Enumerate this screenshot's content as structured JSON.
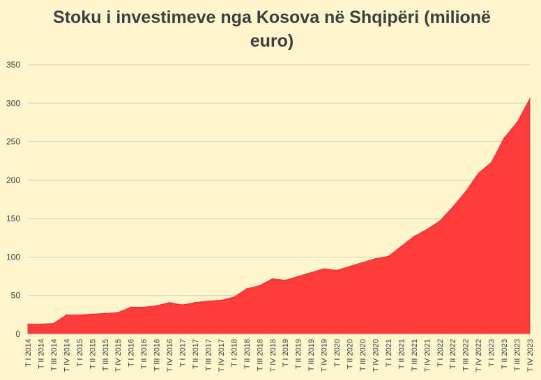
{
  "chart_data": {
    "type": "area",
    "title": "Stoku i investimeve nga Kosova në Shqipëri (milionë euro)",
    "xlabel": "",
    "ylabel": "",
    "ylim": [
      0,
      350
    ],
    "yticks": [
      0,
      50,
      100,
      150,
      200,
      250,
      300,
      350
    ],
    "grid": true,
    "legend": "none",
    "colors": {
      "area": "#ff3b3b",
      "area_edge": "#e52b2b",
      "background": "#fef6cf",
      "grid": "#d9d2b0"
    },
    "categories": [
      "T I 2014",
      "T II 2014",
      "T III 2014",
      "T IV 2014",
      "T I 2015",
      "T II 2015",
      "T III 2015",
      "T IV 2015",
      "T I 2016",
      "T II 2016",
      "T III 2016",
      "T IV 2016",
      "T I 2017",
      "T II 2017",
      "T III 2017",
      "T IV 2017",
      "T I 2018",
      "T II 2018",
      "T III 2018",
      "T IV 2018",
      "T I 2019",
      "T II 2019",
      "T III 2019",
      "T IV 2019",
      "T I 2020",
      "T II 2020",
      "T III 2020",
      "T IV 2020",
      "T I 2021",
      "T II 2021",
      "T III 2021",
      "T IV 2021",
      "T I 2022",
      "T II 2022",
      "T III 2022",
      "T IV 2022",
      "T I 2023",
      "T II 2023",
      "T III 2023",
      "T IV 2023"
    ],
    "values": [
      13,
      13,
      14,
      25,
      25,
      26,
      27,
      28,
      35,
      35,
      37,
      41,
      38,
      41,
      43,
      44,
      48,
      59,
      63,
      72,
      70,
      75,
      80,
      85,
      83,
      88,
      93,
      98,
      101,
      114,
      127,
      136,
      147,
      165,
      185,
      209,
      223,
      255,
      275,
      306
    ]
  }
}
